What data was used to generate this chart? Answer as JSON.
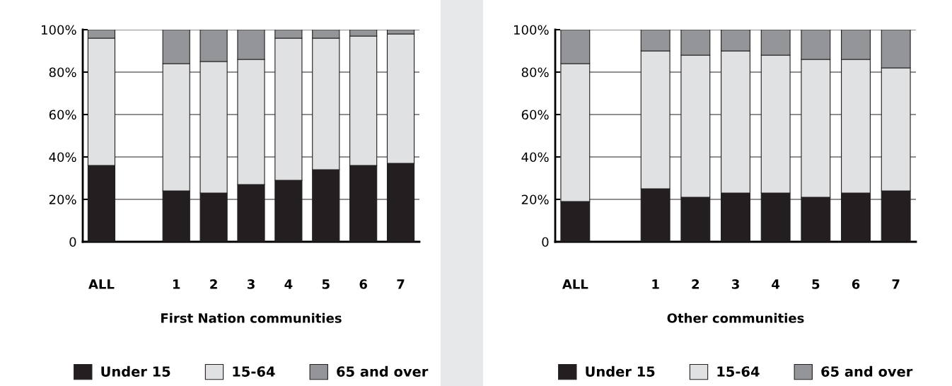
{
  "chart_data": [
    {
      "type": "bar",
      "stacked": true,
      "xlabel": "First Nation communities",
      "categories": [
        "ALL",
        null,
        "1",
        "2",
        "3",
        "4",
        "5",
        "6",
        "7"
      ],
      "series": [
        {
          "name": "Under 15",
          "color": "#231f20",
          "values": [
            36,
            null,
            24,
            23,
            27,
            29,
            34,
            36,
            37
          ]
        },
        {
          "name": "15-64",
          "color": "#e0e1e3",
          "values": [
            60,
            null,
            60,
            62,
            59,
            67,
            62,
            61,
            61
          ]
        },
        {
          "name": "65 and over",
          "color": "#939598",
          "values": [
            4,
            null,
            16,
            15,
            14,
            4,
            4,
            3,
            2
          ]
        }
      ],
      "ylim": [
        0,
        100
      ],
      "yticks": [
        {
          "value": 0,
          "label": "0"
        },
        {
          "value": 20,
          "label": "20%"
        },
        {
          "value": 40,
          "label": "40%"
        },
        {
          "value": 60,
          "label": "60%"
        },
        {
          "value": 80,
          "label": "80%"
        },
        {
          "value": 100,
          "label": "100%"
        }
      ],
      "grid": "y",
      "legend": "bottom"
    },
    {
      "type": "bar",
      "stacked": true,
      "xlabel": "Other communities",
      "categories": [
        "ALL",
        null,
        "1",
        "2",
        "3",
        "4",
        "5",
        "6",
        "7"
      ],
      "series": [
        {
          "name": "Under 15",
          "color": "#231f20",
          "values": [
            19,
            null,
            25,
            21,
            23,
            23,
            21,
            23,
            24
          ]
        },
        {
          "name": "15-64",
          "color": "#e0e1e3",
          "values": [
            65,
            null,
            65,
            67,
            67,
            65,
            65,
            63,
            58
          ]
        },
        {
          "name": "65 and over",
          "color": "#939598",
          "values": [
            16,
            null,
            10,
            12,
            10,
            12,
            14,
            14,
            18
          ]
        }
      ],
      "ylim": [
        0,
        100
      ],
      "yticks": [
        {
          "value": 0,
          "label": "0"
        },
        {
          "value": 20,
          "label": "20%"
        },
        {
          "value": 40,
          "label": "40%"
        },
        {
          "value": 60,
          "label": "60%"
        },
        {
          "value": 80,
          "label": "80%"
        },
        {
          "value": 100,
          "label": "100%"
        }
      ],
      "grid": "y",
      "legend": "bottom"
    }
  ]
}
